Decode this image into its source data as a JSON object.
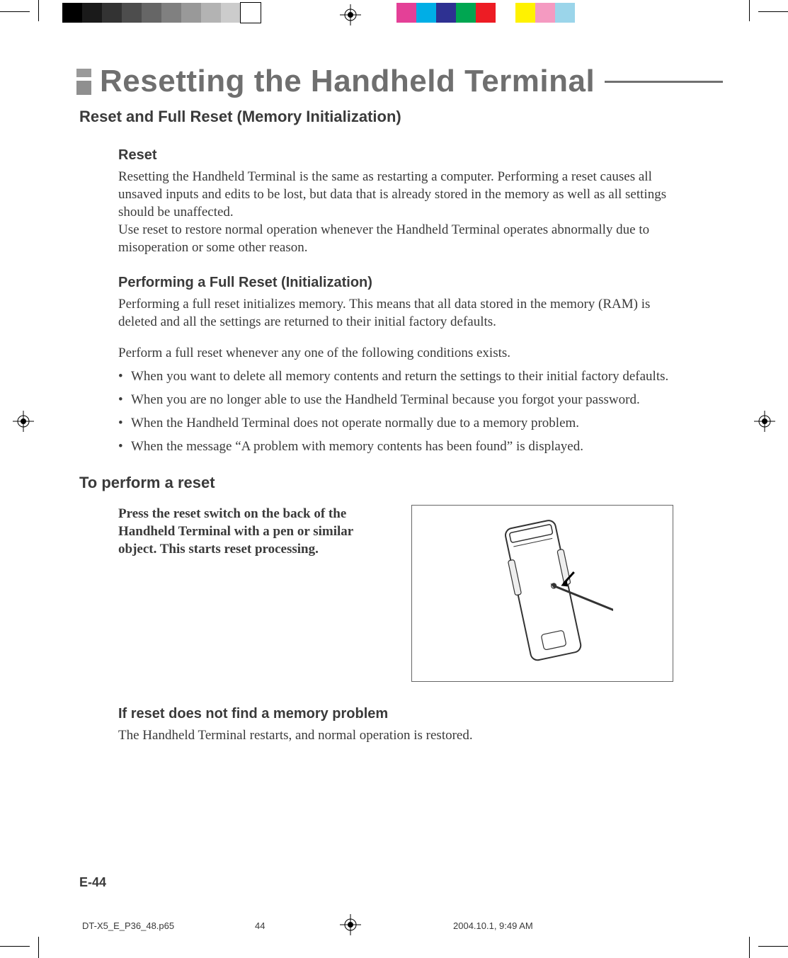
{
  "printerMarks": {
    "grayscaleBar": [
      "#000000",
      "#1a1a1a",
      "#333333",
      "#4d4d4d",
      "#666666",
      "#808080",
      "#999999",
      "#b3b3b3",
      "#cccccc",
      "#ffffff"
    ],
    "colorBar": [
      "#e44097",
      "#00aee6",
      "#2e3192",
      "#00a651",
      "#ed1c24",
      "#ffffff",
      "#fff200",
      "#f49ac1",
      "#9bd5ea",
      "#ffffff"
    ]
  },
  "title": "Resetting the Handheld Terminal",
  "section1": {
    "heading": "Reset and Full Reset (Memory Initialization)",
    "reset": {
      "heading": "Reset",
      "para1": "Resetting the Handheld Terminal is the same as restarting a computer. Performing a reset causes all unsaved inputs and edits to be lost, but data that is already stored in the memory as well as all settings should be unaffected.",
      "para2": "Use reset to restore normal operation whenever the Handheld Terminal operates abnormally due to misoperation or some other reason."
    },
    "fullReset": {
      "heading": "Performing a Full Reset (Initialization)",
      "para1": "Performing a full reset initializes memory. This means that all data stored in the memory (RAM) is deleted and all the settings are returned to their initial factory defaults.",
      "para2": "Perform a full reset whenever any one of the following conditions exists.",
      "bullets": [
        "When you want to delete all memory contents and return the settings to their initial factory defaults.",
        "When you are no longer able to use the Handheld Terminal because you forgot your password.",
        "When the Handheld Terminal does not operate normally due to a memory problem.",
        "When the message “A problem with memory contents has been found” is displayed."
      ]
    }
  },
  "section2": {
    "heading": "To perform a reset",
    "instruction": "Press the reset switch on the back of the Handheld Terminal with a pen or similar object.  This starts reset processing.",
    "sub": {
      "heading": "If reset does not find a memory problem",
      "body": "The Handheld Terminal restarts, and normal operation is restored."
    }
  },
  "footer": {
    "pageNumber": "E-44",
    "slugFile": "DT-X5_E_P36_48.p65",
    "slugPage": "44",
    "slugDate": "2004.10.1, 9:49 AM"
  }
}
